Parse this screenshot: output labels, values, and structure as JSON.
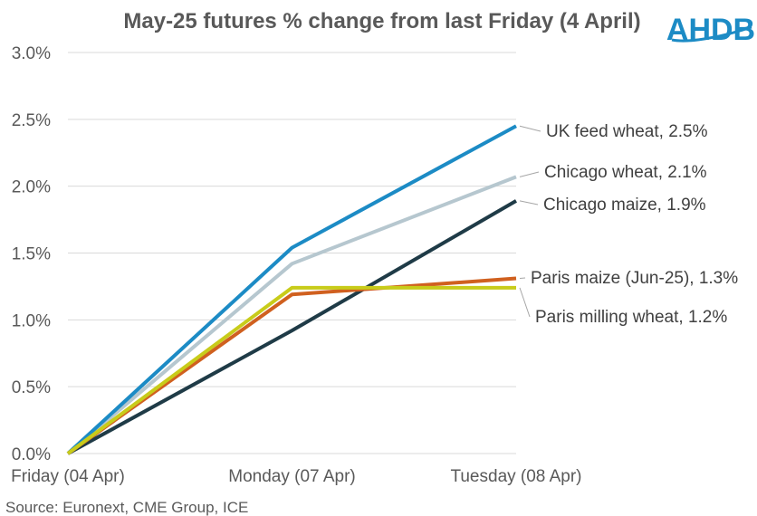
{
  "chart_data": {
    "type": "line",
    "title": "May-25 futures % change from last Friday (4 April)",
    "categories": [
      "Friday (04 Apr)",
      "Monday (07 Apr)",
      "Tuesday (08 Apr)"
    ],
    "ylim": [
      0,
      3.0
    ],
    "yticks": [
      0,
      0.5,
      1.0,
      1.5,
      2.0,
      2.5,
      3.0
    ],
    "ytick_labels": [
      "0.0%",
      "0.5%",
      "1.0%",
      "1.5%",
      "2.0%",
      "2.5%",
      "3.0%"
    ],
    "xlabel": "",
    "ylabel": "",
    "grid": true,
    "series": [
      {
        "name": "UK feed wheat",
        "values": [
          0,
          1.54,
          2.45
        ],
        "color": "#1c8bc5",
        "label": "UK feed wheat, 2.5%"
      },
      {
        "name": "Chicago wheat",
        "values": [
          0,
          1.42,
          2.07
        ],
        "color": "#b6c7cf",
        "label": "Chicago wheat, 2.1%"
      },
      {
        "name": "Chicago maize",
        "values": [
          0,
          0.92,
          1.89
        ],
        "color": "#1f3b47",
        "label": "Chicago maize, 1.9%"
      },
      {
        "name": "Paris milling wheat",
        "values": [
          0,
          1.24,
          1.24
        ],
        "color": "#c8cc1a",
        "label": "Paris milling wheat, 1.2%"
      },
      {
        "name": "Paris maize (Jun-25)",
        "values": [
          0,
          1.19,
          1.31
        ],
        "color": "#d0601f",
        "label": "Paris maize (Jun-25), 1.3%"
      }
    ],
    "source": "Source: Euronext, CME Group, ICE"
  },
  "logo": {
    "text": "AHDB",
    "color": "#1c8bc5"
  }
}
